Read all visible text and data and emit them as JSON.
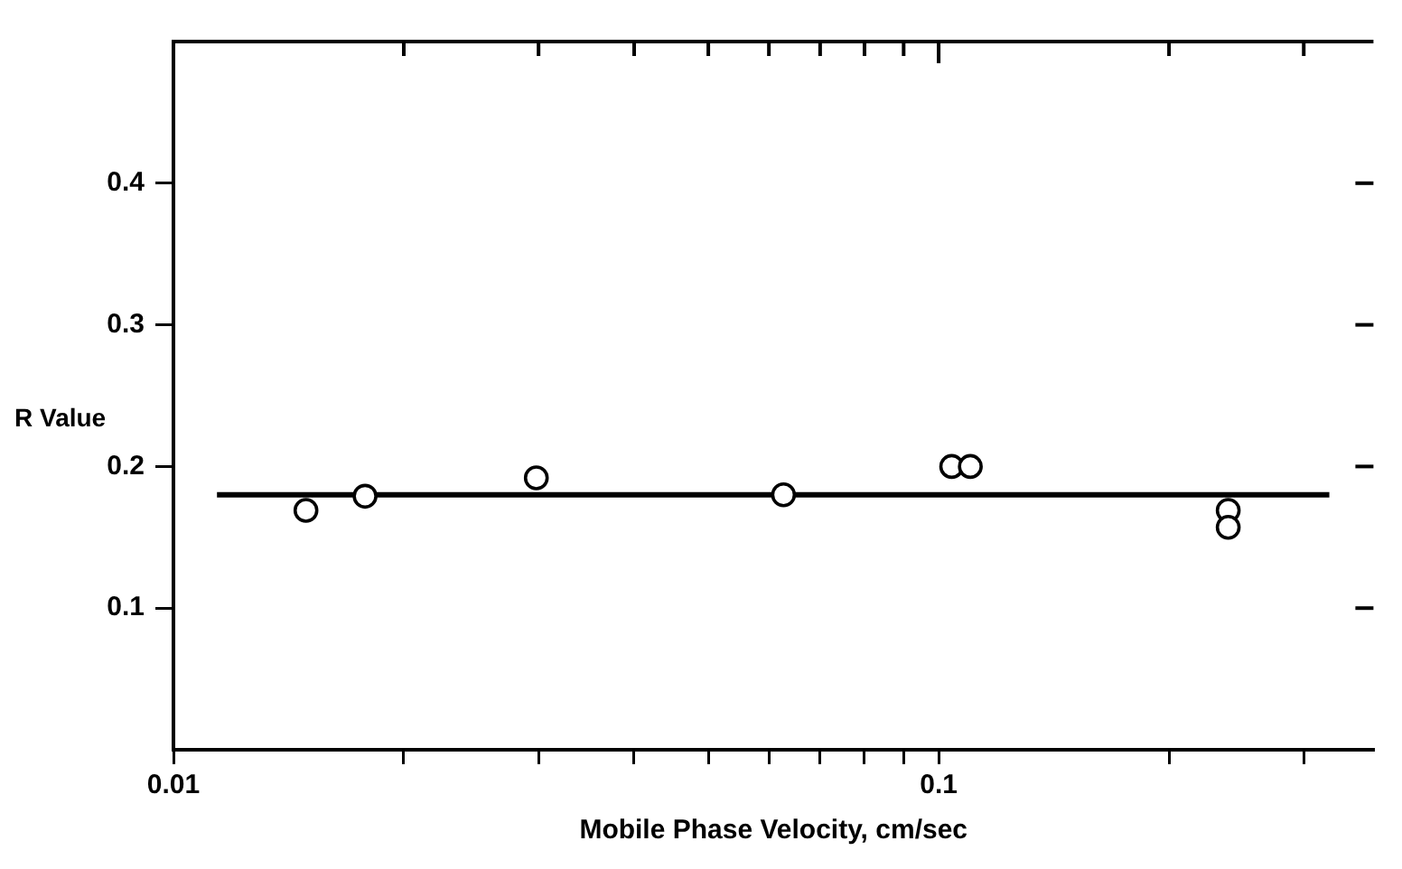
{
  "chart_data": {
    "type": "scatter",
    "xlabel": "Mobile Phase Velocity, cm/sec",
    "ylabel": "R Value",
    "log": "x",
    "grid": false,
    "marker": "circle",
    "legend": false,
    "xlim": [
      0.01,
      0.37
    ],
    "ylim": [
      0,
      0.5
    ],
    "xticks": [
      0.01,
      {
        "value": 0.02,
        "label": null
      },
      {
        "value": 0.03,
        "label": null
      },
      {
        "value": 0.04,
        "label": null
      },
      {
        "value": 0.05,
        "label": null
      },
      {
        "value": 0.06,
        "label": null
      },
      {
        "value": 0.07,
        "label": null
      },
      {
        "value": 0.08,
        "label": null
      },
      {
        "value": 0.09,
        "label": null
      },
      0.1,
      {
        "value": 0.2,
        "label": null
      },
      {
        "value": 0.3,
        "label": null
      }
    ],
    "yticks": [
      0.1,
      0.2,
      0.3,
      0.4
    ],
    "series": [
      {
        "color": "#000000",
        "x": [
          0.0149,
          0.0178,
          0.0298,
          0.0627,
          0.104,
          0.11,
          0.239,
          0.239
        ],
        "values": [
          0.169,
          0.179,
          0.192,
          0.18,
          0.2,
          0.2,
          0.169,
          0.157
        ]
      },
      {
        "type": "line",
        "color": "#000000",
        "marker": "none",
        "x": [
          0.0114,
          0.324
        ],
        "values": [
          0.18,
          0.18
        ]
      }
    ]
  }
}
